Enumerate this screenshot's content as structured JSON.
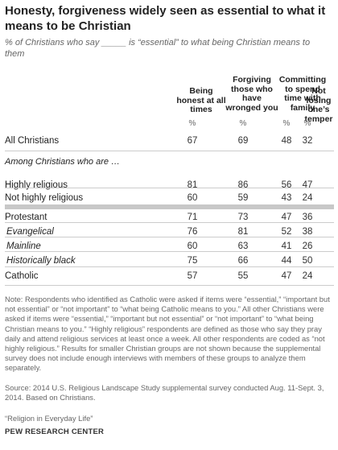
{
  "title": "Honesty, forgiveness widely seen as essential to what it means to be Christian",
  "subtitle": "% of Christians who say _____ is “essential” to what being Christian means to them",
  "chart_data": {
    "type": "table",
    "columns": [
      "Being honest at all times",
      "Forgiving those who have wronged you",
      "Committing to spend time with family",
      "Not losing one’s temper"
    ],
    "unit_label": "%",
    "section_label": "Among Christians who are …",
    "rows": [
      {
        "label": "All Christians",
        "values": [
          67,
          69,
          48,
          32
        ]
      },
      {
        "label": "Highly religious",
        "values": [
          81,
          86,
          56,
          47
        ]
      },
      {
        "label": "Not highly religious",
        "values": [
          60,
          59,
          43,
          24
        ]
      },
      {
        "label": "Protestant",
        "values": [
          71,
          73,
          47,
          36
        ]
      },
      {
        "label": "Evangelical",
        "values": [
          76,
          81,
          52,
          38
        ]
      },
      {
        "label": "Mainline",
        "values": [
          60,
          63,
          41,
          26
        ]
      },
      {
        "label": "Historically black",
        "values": [
          75,
          66,
          44,
          50
        ]
      },
      {
        "label": "Catholic",
        "values": [
          57,
          55,
          47,
          24
        ]
      }
    ]
  },
  "note": "Note: Respondents who identified as Catholic were asked if items were “essential,” “important but not essential” or “not important” to “what being Catholic means to you.” All other Christians were asked if items were “essential,” “important but not essential” or “not important” to “what being Christian means to you.” “Highly religious” respondents are defined as those who say they pray daily and attend religious services at least once a week. All other respondents are coded as “not highly religious.” Results for smaller Christian groups are not shown because the supplemental survey does not include enough interviews with members of these groups to analyze them separately.",
  "source": "Source: 2014 U.S. Religious Landscape Study supplemental survey conducted Aug. 11-Sept. 3, 2014. Based on Christians.",
  "report": "“Religion in Everyday Life”",
  "org": "PEW RESEARCH CENTER"
}
